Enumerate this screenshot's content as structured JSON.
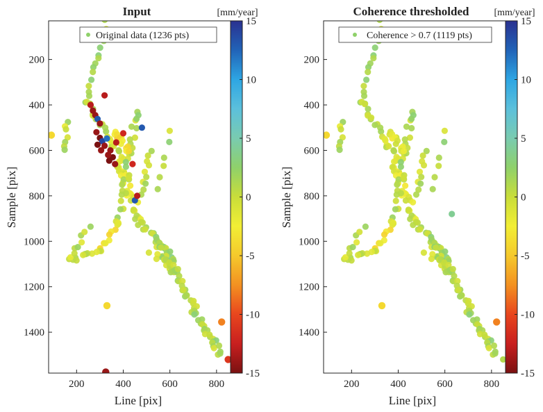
{
  "colorbar": {
    "unit": "[mm/year]",
    "range": [
      -15,
      15
    ],
    "ticks": [
      "15",
      "10",
      "5",
      "0",
      "-5",
      "-10",
      "-15"
    ],
    "tick_values": [
      15,
      10,
      5,
      0,
      -5,
      -10,
      -15
    ],
    "colormap_stops": [
      "#7a1111",
      "#c81f1f",
      "#e8461e",
      "#f39121",
      "#f5c92c",
      "#f2ee35",
      "#c9dd3a",
      "#8fd16a",
      "#79cbb0",
      "#5cc0db",
      "#2ea6e3",
      "#2163b7",
      "#2a3190"
    ]
  },
  "panels": [
    {
      "title": "Input",
      "legend": "Original data (1236 pts)",
      "xlabel": "Line [pix]",
      "ylabel": "Sample [pix]",
      "xticks": [
        "200",
        "400",
        "600",
        "800"
      ],
      "xtick_values": [
        200,
        400,
        600,
        800
      ],
      "yticks": [
        "200",
        "400",
        "600",
        "800",
        "1000",
        "1200",
        "1400"
      ],
      "ytick_values": [
        200,
        400,
        600,
        800,
        1000,
        1200,
        1400
      ]
    },
    {
      "title": "Coherence thresholded",
      "legend": "Coherence > 0.7 (1119 pts)",
      "xlabel": "Line [pix]",
      "ylabel": "Sample [pix]",
      "xticks": [
        "200",
        "400",
        "600",
        "800"
      ],
      "xtick_values": [
        200,
        400,
        600,
        800
      ],
      "yticks": [
        "200",
        "400",
        "600",
        "800",
        "1000",
        "1200",
        "1400"
      ],
      "ytick_values": [
        200,
        400,
        600,
        800,
        1000,
        1200,
        1400
      ]
    }
  ],
  "chart_data": [
    {
      "type": "scatter",
      "title": "Input",
      "xlabel": "Line [pix]",
      "ylabel": "Sample [pix]",
      "xlim": [
        80,
        860
      ],
      "ylim": [
        30,
        1580
      ],
      "y_reversed": true,
      "colorbar_label": "[mm/year]",
      "clim": [
        -15,
        15
      ],
      "legend": "Original data (1236 pts)",
      "segments": [
        {
          "from": [
            330,
            35
          ],
          "to": [
            245,
            380
          ],
          "n": 16,
          "jitter": 10,
          "value": 1
        },
        {
          "from": [
            245,
            380
          ],
          "to": [
            390,
            640
          ],
          "n": 22,
          "jitter": 14,
          "value": 0
        },
        {
          "from": [
            160,
            470
          ],
          "to": [
            150,
            600
          ],
          "n": 7,
          "jitter": 8,
          "value": 0
        },
        {
          "from": [
            380,
            640
          ],
          "to": [
            470,
            920
          ],
          "n": 30,
          "jitter": 18,
          "value": -1
        },
        {
          "from": [
            460,
            420
          ],
          "to": [
            380,
            920
          ],
          "n": 28,
          "jitter": 16,
          "value": 1
        },
        {
          "from": [
            360,
            520
          ],
          "to": [
            420,
            600
          ],
          "n": 12,
          "jitter": 14,
          "value": -4
        },
        {
          "from": [
            520,
            600
          ],
          "to": [
            480,
            800
          ],
          "n": 10,
          "jitter": 10,
          "value": 0
        },
        {
          "from": [
            600,
            520
          ],
          "to": [
            540,
            780
          ],
          "n": 6,
          "jitter": 10,
          "value": 1
        },
        {
          "from": [
            380,
            920
          ],
          "to": [
            300,
            1040
          ],
          "n": 10,
          "jitter": 10,
          "value": -3
        },
        {
          "from": [
            300,
            1040
          ],
          "to": [
            170,
            1080
          ],
          "n": 12,
          "jitter": 12,
          "value": 0
        },
        {
          "from": [
            170,
            1080
          ],
          "to": [
            250,
            940
          ],
          "n": 8,
          "jitter": 10,
          "value": 0
        },
        {
          "from": [
            470,
            920
          ],
          "to": [
            560,
            1010
          ],
          "n": 12,
          "jitter": 12,
          "value": 1
        },
        {
          "from": [
            560,
            1010
          ],
          "to": [
            610,
            1080
          ],
          "n": 10,
          "jitter": 12,
          "value": 2
        },
        {
          "from": [
            540,
            1010
          ],
          "to": [
            820,
            1500
          ],
          "n": 60,
          "jitter": 16,
          "value": 1
        },
        {
          "from": [
            520,
            1060
          ],
          "to": [
            650,
            1120
          ],
          "n": 10,
          "jitter": 16,
          "value": 0
        }
      ],
      "points": [
        {
          "x": 92,
          "y": 533,
          "v": -4,
          "big": true
        },
        {
          "x": 330,
          "y": 1283,
          "v": -4,
          "big": true
        },
        {
          "x": 822,
          "y": 1355,
          "v": -8,
          "big": true
        },
        {
          "x": 850,
          "y": 1520,
          "v": -11,
          "big": true
        },
        {
          "x": 325,
          "y": 1575,
          "v": -14,
          "big": true
        },
        {
          "x": 320,
          "y": 358,
          "v": -13,
          "big": false
        },
        {
          "x": 400,
          "y": 525,
          "v": -12,
          "big": false
        },
        {
          "x": 270,
          "y": 425,
          "v": -14,
          "big": false
        },
        {
          "x": 280,
          "y": 445,
          "v": -14,
          "big": false
        },
        {
          "x": 290,
          "y": 462,
          "v": 13,
          "big": false
        },
        {
          "x": 300,
          "y": 482,
          "v": -14,
          "big": false
        },
        {
          "x": 285,
          "y": 520,
          "v": -14,
          "big": false
        },
        {
          "x": 300,
          "y": 545,
          "v": -15,
          "big": false
        },
        {
          "x": 310,
          "y": 560,
          "v": 14,
          "big": false
        },
        {
          "x": 320,
          "y": 580,
          "v": -14,
          "big": false
        },
        {
          "x": 330,
          "y": 548,
          "v": 12,
          "big": false
        },
        {
          "x": 345,
          "y": 600,
          "v": -14,
          "big": false
        },
        {
          "x": 355,
          "y": 630,
          "v": -15,
          "big": false
        },
        {
          "x": 365,
          "y": 660,
          "v": -14,
          "big": false
        },
        {
          "x": 340,
          "y": 645,
          "v": -15,
          "big": false
        },
        {
          "x": 305,
          "y": 600,
          "v": -14,
          "big": false
        },
        {
          "x": 290,
          "y": 575,
          "v": -15,
          "big": false
        },
        {
          "x": 335,
          "y": 620,
          "v": -14,
          "big": false
        },
        {
          "x": 370,
          "y": 565,
          "v": -13,
          "big": false
        },
        {
          "x": 260,
          "y": 400,
          "v": -13,
          "big": false
        },
        {
          "x": 440,
          "y": 660,
          "v": -12,
          "big": false
        },
        {
          "x": 450,
          "y": 820,
          "v": 13,
          "big": false
        },
        {
          "x": 460,
          "y": 800,
          "v": -13,
          "big": false
        },
        {
          "x": 480,
          "y": 500,
          "v": 13,
          "big": false
        }
      ]
    },
    {
      "type": "scatter",
      "title": "Coherence thresholded",
      "xlabel": "Line [pix]",
      "ylabel": "Sample [pix]",
      "xlim": [
        80,
        860
      ],
      "ylim": [
        30,
        1580
      ],
      "y_reversed": true,
      "colorbar_label": "[mm/year]",
      "clim": [
        -15,
        15
      ],
      "legend": "Coherence > 0.7 (1119 pts)",
      "segments": [
        {
          "from": [
            330,
            35
          ],
          "to": [
            245,
            380
          ],
          "n": 16,
          "jitter": 10,
          "value": 1
        },
        {
          "from": [
            245,
            380
          ],
          "to": [
            390,
            640
          ],
          "n": 22,
          "jitter": 14,
          "value": 0
        },
        {
          "from": [
            160,
            470
          ],
          "to": [
            150,
            600
          ],
          "n": 7,
          "jitter": 8,
          "value": 0
        },
        {
          "from": [
            380,
            640
          ],
          "to": [
            470,
            920
          ],
          "n": 30,
          "jitter": 18,
          "value": -1
        },
        {
          "from": [
            460,
            420
          ],
          "to": [
            380,
            920
          ],
          "n": 28,
          "jitter": 16,
          "value": 1
        },
        {
          "from": [
            360,
            520
          ],
          "to": [
            420,
            600
          ],
          "n": 12,
          "jitter": 14,
          "value": -2
        },
        {
          "from": [
            520,
            600
          ],
          "to": [
            480,
            800
          ],
          "n": 10,
          "jitter": 10,
          "value": 0
        },
        {
          "from": [
            600,
            520
          ],
          "to": [
            540,
            780
          ],
          "n": 6,
          "jitter": 10,
          "value": 1
        },
        {
          "from": [
            380,
            920
          ],
          "to": [
            300,
            1040
          ],
          "n": 10,
          "jitter": 10,
          "value": -3
        },
        {
          "from": [
            300,
            1040
          ],
          "to": [
            170,
            1080
          ],
          "n": 12,
          "jitter": 12,
          "value": 0
        },
        {
          "from": [
            170,
            1080
          ],
          "to": [
            250,
            940
          ],
          "n": 8,
          "jitter": 10,
          "value": 0
        },
        {
          "from": [
            470,
            920
          ],
          "to": [
            560,
            1010
          ],
          "n": 12,
          "jitter": 12,
          "value": 1
        },
        {
          "from": [
            560,
            1010
          ],
          "to": [
            610,
            1080
          ],
          "n": 10,
          "jitter": 12,
          "value": 2
        },
        {
          "from": [
            540,
            1010
          ],
          "to": [
            820,
            1500
          ],
          "n": 60,
          "jitter": 16,
          "value": 1
        },
        {
          "from": [
            520,
            1060
          ],
          "to": [
            650,
            1120
          ],
          "n": 10,
          "jitter": 16,
          "value": 0
        }
      ],
      "points": [
        {
          "x": 92,
          "y": 533,
          "v": -4,
          "big": true
        },
        {
          "x": 330,
          "y": 1283,
          "v": -4,
          "big": true
        },
        {
          "x": 822,
          "y": 1355,
          "v": -8,
          "big": true
        },
        {
          "x": 850,
          "y": 1520,
          "v": 1,
          "big": false
        },
        {
          "x": 630,
          "y": 880,
          "v": 4,
          "big": false
        }
      ]
    }
  ]
}
